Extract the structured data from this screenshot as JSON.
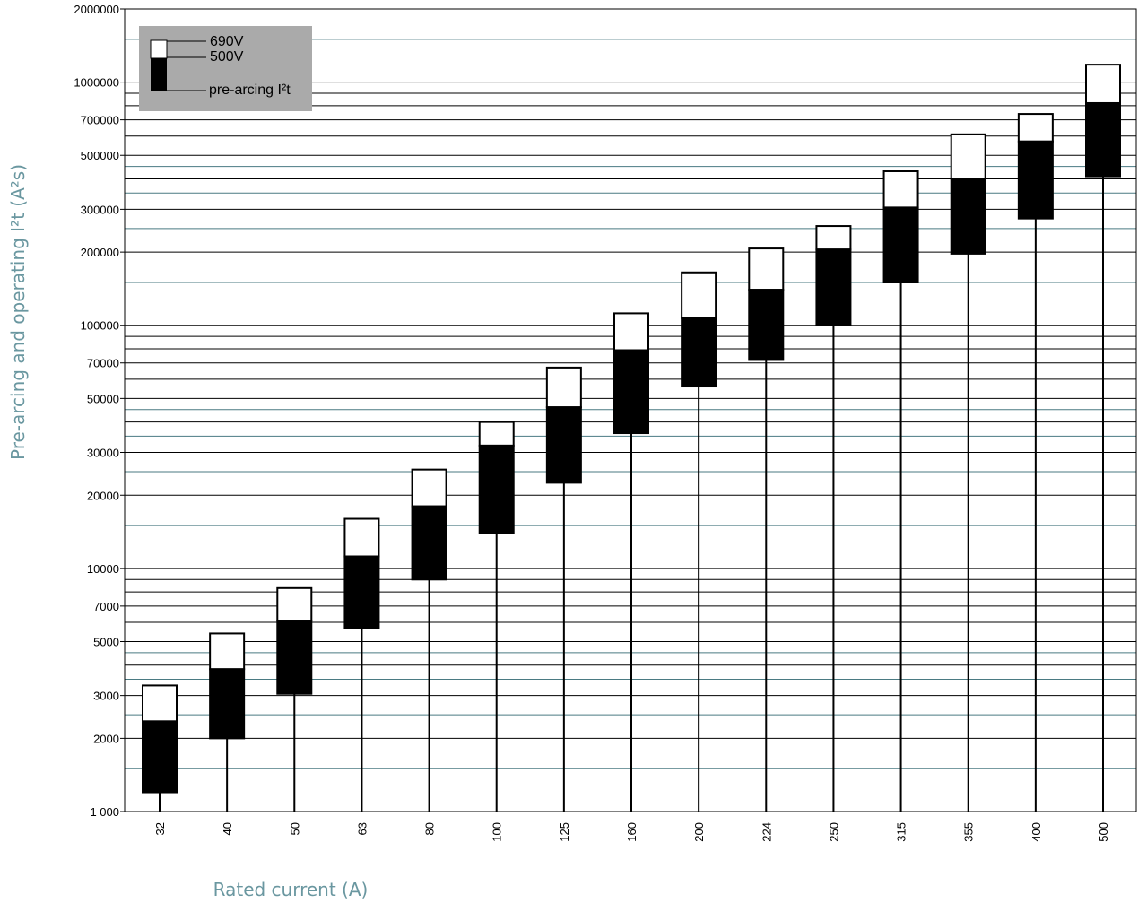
{
  "chart_data": {
    "type": "bar",
    "subtype": "floating-stacked-range",
    "xlabel": "Rated current (A)",
    "ylabel": "Pre-arcing and operating I²t (A²s)",
    "yscale": "log",
    "ylim": [
      1000,
      2000000
    ],
    "grid": true,
    "legend_position": "top-left",
    "colors": {
      "gridline": "#000000",
      "secondary_gridline": "#4a7a82",
      "legend_bg": "#aaaaaa",
      "pre_arcing": "#000000",
      "operating": "#ffffff",
      "axis_title": "#6a97a0"
    },
    "y_ticks": [
      {
        "value": 1000,
        "label": "1 000"
      },
      {
        "value": 2000,
        "label": "2000"
      },
      {
        "value": 3000,
        "label": "3000"
      },
      {
        "value": 5000,
        "label": "5000"
      },
      {
        "value": 7000,
        "label": "7000"
      },
      {
        "value": 10000,
        "label": "10000"
      },
      {
        "value": 20000,
        "label": "20000"
      },
      {
        "value": 30000,
        "label": "30000"
      },
      {
        "value": 50000,
        "label": "50000"
      },
      {
        "value": 70000,
        "label": "70000"
      },
      {
        "value": 100000,
        "label": "100000"
      },
      {
        "value": 200000,
        "label": "200000"
      },
      {
        "value": 300000,
        "label": "300000"
      },
      {
        "value": 500000,
        "label": "500000"
      },
      {
        "value": 700000,
        "label": "700000"
      },
      {
        "value": 1000000,
        "label": "1000000"
      },
      {
        "value": 2000000,
        "label": "2000000"
      }
    ],
    "legend": {
      "label_690": "690V",
      "label_500": "500V",
      "label_prearc": "pre-arcing I²t"
    },
    "categories": [
      "32",
      "40",
      "50",
      "63",
      "80",
      "100",
      "125",
      "160",
      "200",
      "224",
      "250",
      "315",
      "355",
      "400",
      "500"
    ],
    "series": [
      {
        "name": "pre-arcing I²t",
        "min": [
          1200,
          2000,
          3050,
          5700,
          9000,
          14000,
          22500,
          36000,
          56000,
          72000,
          100000,
          150000,
          197000,
          275000,
          410000
        ]
      },
      {
        "name": "500V",
        "values": [
          2350,
          3850,
          6100,
          11200,
          18000,
          32000,
          46000,
          79000,
          107000,
          140000,
          205000,
          305000,
          400000,
          570000,
          820000
        ]
      },
      {
        "name": "690V",
        "values": [
          3300,
          5400,
          8300,
          16000,
          25500,
          40000,
          67000,
          112000,
          165000,
          207000,
          256000,
          430000,
          610000,
          740000,
          1180000
        ]
      }
    ]
  }
}
